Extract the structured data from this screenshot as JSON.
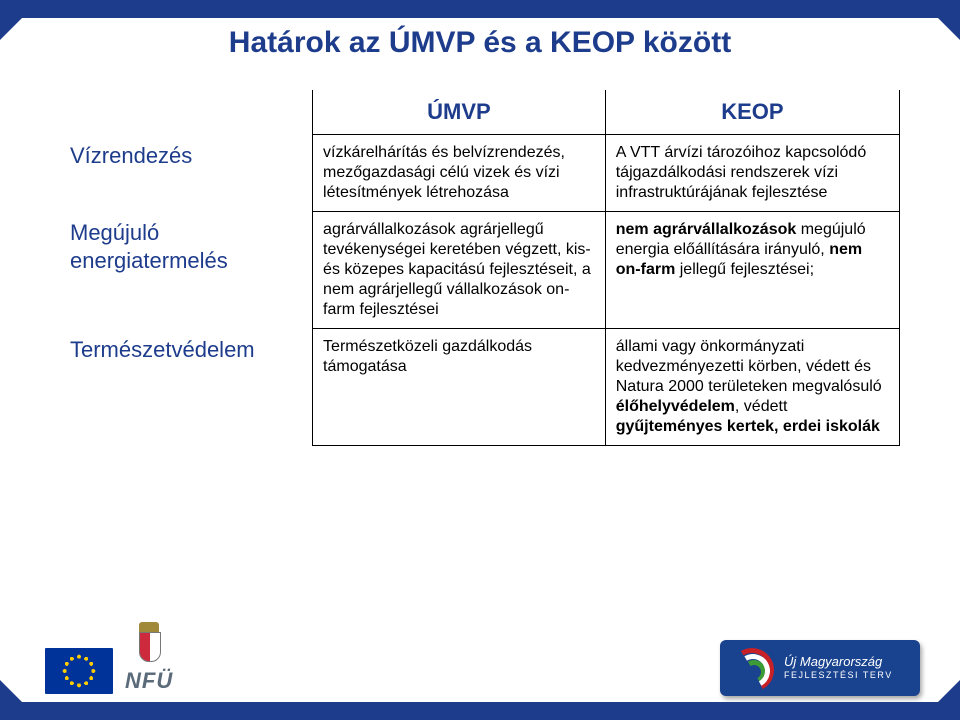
{
  "colors": {
    "brand_blue": "#1e3c8c",
    "text_body": "#000000",
    "rowhead": "#1e3c8c",
    "bg": "#ffffff",
    "eu_flag_bg": "#003399",
    "eu_star": "#ffcc00",
    "logo_bg": "#19428f",
    "logo_red": "#c72127",
    "logo_green": "#3d9b35",
    "nfu_gray": "#5b6b7a"
  },
  "title": "Határok az ÚMVP és a KEOP között",
  "table": {
    "headers": {
      "blank": "",
      "col1": "ÚMVP",
      "col2": "KEOP"
    },
    "rows": [
      {
        "label": "Vízrendezés",
        "umvp": "vízkárelhárítás és belvízrendezés, mezőgazdasági célú vizek és vízi létesítmények létrehozása",
        "keop_html": "A VTT árvízi tározóihoz kapcsolódó tájgazdálkodási rendszerek vízi infrastruktúrájának fejlesztése"
      },
      {
        "label": "Megújuló energiatermelés",
        "umvp": "agrárvállalkozások agrárjellegű tevékenységei keretében végzett, kis-és közepes kapacitású fejlesztéseit, a nem agrárjellegű vállalkozások on-farm fejlesztései",
        "keop_html": "<b>nem agrárvállalkozások</b> megújuló energia előállítására irányuló, <b>nem on-farm</b> jellegű fejlesztései;"
      },
      {
        "label": "Természetvédelem",
        "umvp": "Természetközeli gazdálkodás támogatása",
        "keop_html": "állami vagy önkormányzati kedvezményezetti körben, védett és Natura 2000 területeken megvalósuló <b>élőhelyvédelem</b>, védett <b>gyűjteményes kertek, erdei iskolák</b>"
      }
    ]
  },
  "footer": {
    "nfu": "NFÜ",
    "logo_line1": "Új Magyarország",
    "logo_line2": "FEJLESZTÉSI TERV"
  }
}
